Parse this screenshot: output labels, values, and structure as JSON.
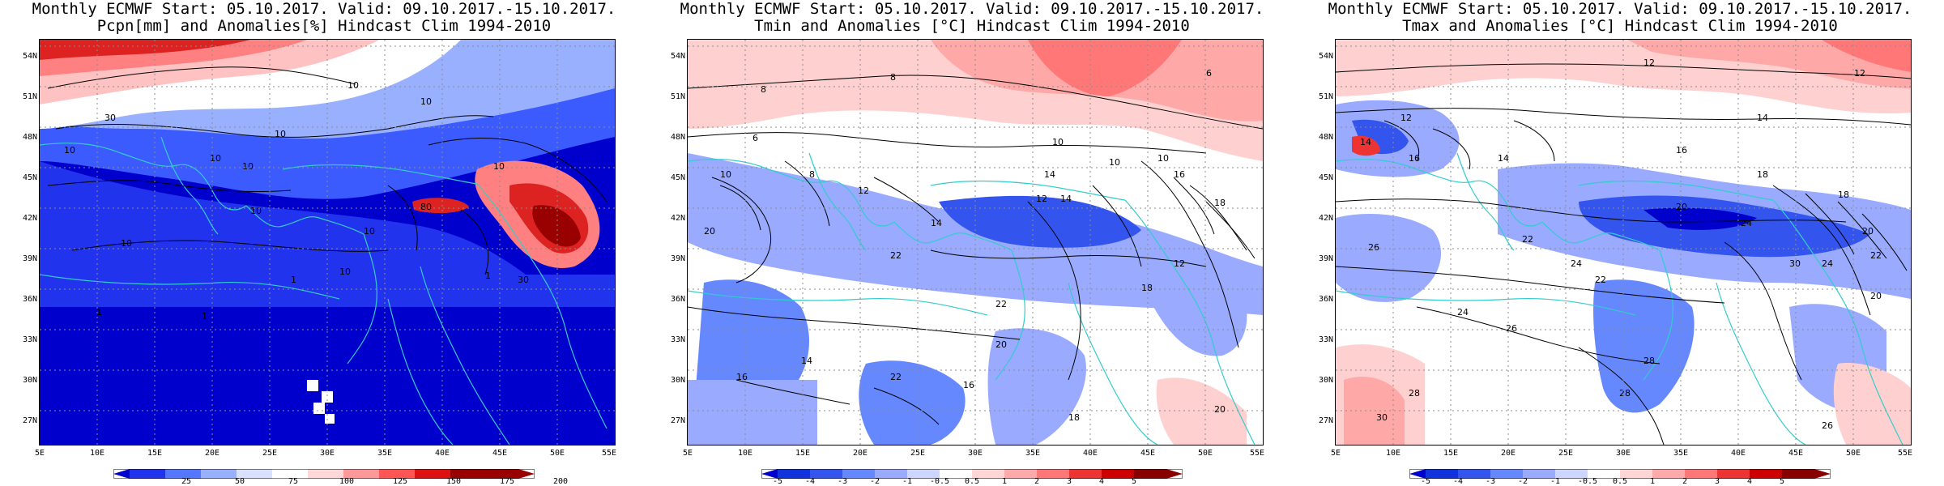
{
  "colors": {
    "coast": "#33cccc",
    "contour": "#000000",
    "grid": "#8c8c8c"
  },
  "panels": [
    {
      "title_line1": "Monthly ECMWF Start: 05.10.2017. Valid: 09.10.2017.-15.10.2017.",
      "title_line2": "Pcpn[mm] and Anomalies[%] Hindcast Clim 1994-2010",
      "lat_labels": [
        "54N",
        "51N",
        "48N",
        "45N",
        "42N",
        "39N",
        "36N",
        "33N",
        "30N",
        "27N"
      ],
      "lon_labels": [
        "5E",
        "10E",
        "15E",
        "20E",
        "25E",
        "30E",
        "35E",
        "40E",
        "45E",
        "50E",
        "55E"
      ],
      "colorbar_labels": [
        "25",
        "50",
        "75",
        "100",
        "125",
        "150",
        "175",
        "200"
      ],
      "colorbar_colors": [
        "#0000cc",
        "#2233ee",
        "#5577ff",
        "#99b0ff",
        "#d9e1ff",
        "#ffffff",
        "#ffd9d9",
        "#ff9999",
        "#ff5555",
        "#dd1111",
        "#990000"
      ],
      "contour_labels": [
        "10",
        "10",
        "10",
        "10",
        "10",
        "10",
        "10",
        "30",
        "10",
        "80",
        "10",
        "10",
        "10",
        "1",
        "1",
        "1",
        "1",
        "30"
      ]
    },
    {
      "title_line1": "Monthly ECMWF Start: 05.10.2017. Valid: 09.10.2017.-15.10.2017.",
      "title_line2": "Tmin and Anomalies [°C] Hindcast Clim 1994-2010",
      "lat_labels": [
        "54N",
        "51N",
        "48N",
        "45N",
        "42N",
        "39N",
        "36N",
        "33N",
        "30N",
        "27N"
      ],
      "lon_labels": [
        "5E",
        "10E",
        "15E",
        "20E",
        "25E",
        "30E",
        "35E",
        "40E",
        "45E",
        "50E",
        "55E"
      ],
      "colorbar_labels": [
        "-5",
        "-4",
        "-3",
        "-2",
        "-1",
        "-0.5",
        "0.5",
        "1",
        "2",
        "3",
        "4",
        "5"
      ],
      "colorbar_colors": [
        "#0000cc",
        "#1133dd",
        "#3355ee",
        "#6688ff",
        "#99aaff",
        "#ccd6ff",
        "#ffffff",
        "#ffd6d6",
        "#ffaaaa",
        "#ff7777",
        "#ee3333",
        "#cc0000",
        "#880000"
      ],
      "contour_labels": [
        "8",
        "8",
        "6",
        "6",
        "10",
        "10",
        "8",
        "12",
        "14",
        "10",
        "16",
        "18",
        "20",
        "22",
        "22",
        "20",
        "18",
        "16",
        "14",
        "12",
        "14",
        "20",
        "22",
        "16",
        "18",
        "14",
        "12",
        "10"
      ]
    },
    {
      "title_line1": "Monthly ECMWF Start: 05.10.2017. Valid: 09.10.2017.-15.10.2017.",
      "title_line2": "Tmax and Anomalies [°C] Hindcast Clim 1994-2010",
      "lat_labels": [
        "54N",
        "51N",
        "48N",
        "45N",
        "42N",
        "39N",
        "36N",
        "33N",
        "30N",
        "27N"
      ],
      "lon_labels": [
        "5E",
        "10E",
        "15E",
        "20E",
        "25E",
        "30E",
        "35E",
        "40E",
        "45E",
        "50E",
        "55E"
      ],
      "colorbar_labels": [
        "-5",
        "-4",
        "-3",
        "-2",
        "-1",
        "-0.5",
        "0.5",
        "1",
        "2",
        "3",
        "4",
        "5"
      ],
      "colorbar_colors": [
        "#0000cc",
        "#1133dd",
        "#3355ee",
        "#6688ff",
        "#99aaff",
        "#ccd6ff",
        "#ffffff",
        "#ffd6d6",
        "#ffaaaa",
        "#ff7777",
        "#ee3333",
        "#cc0000",
        "#880000"
      ],
      "contour_labels": [
        "12",
        "12",
        "14",
        "12",
        "14",
        "16",
        "14",
        "16",
        "18",
        "18",
        "20",
        "22",
        "24",
        "26",
        "24",
        "22",
        "20",
        "24",
        "28",
        "30",
        "28",
        "26",
        "24",
        "22",
        "30",
        "28",
        "26",
        "20"
      ]
    }
  ]
}
